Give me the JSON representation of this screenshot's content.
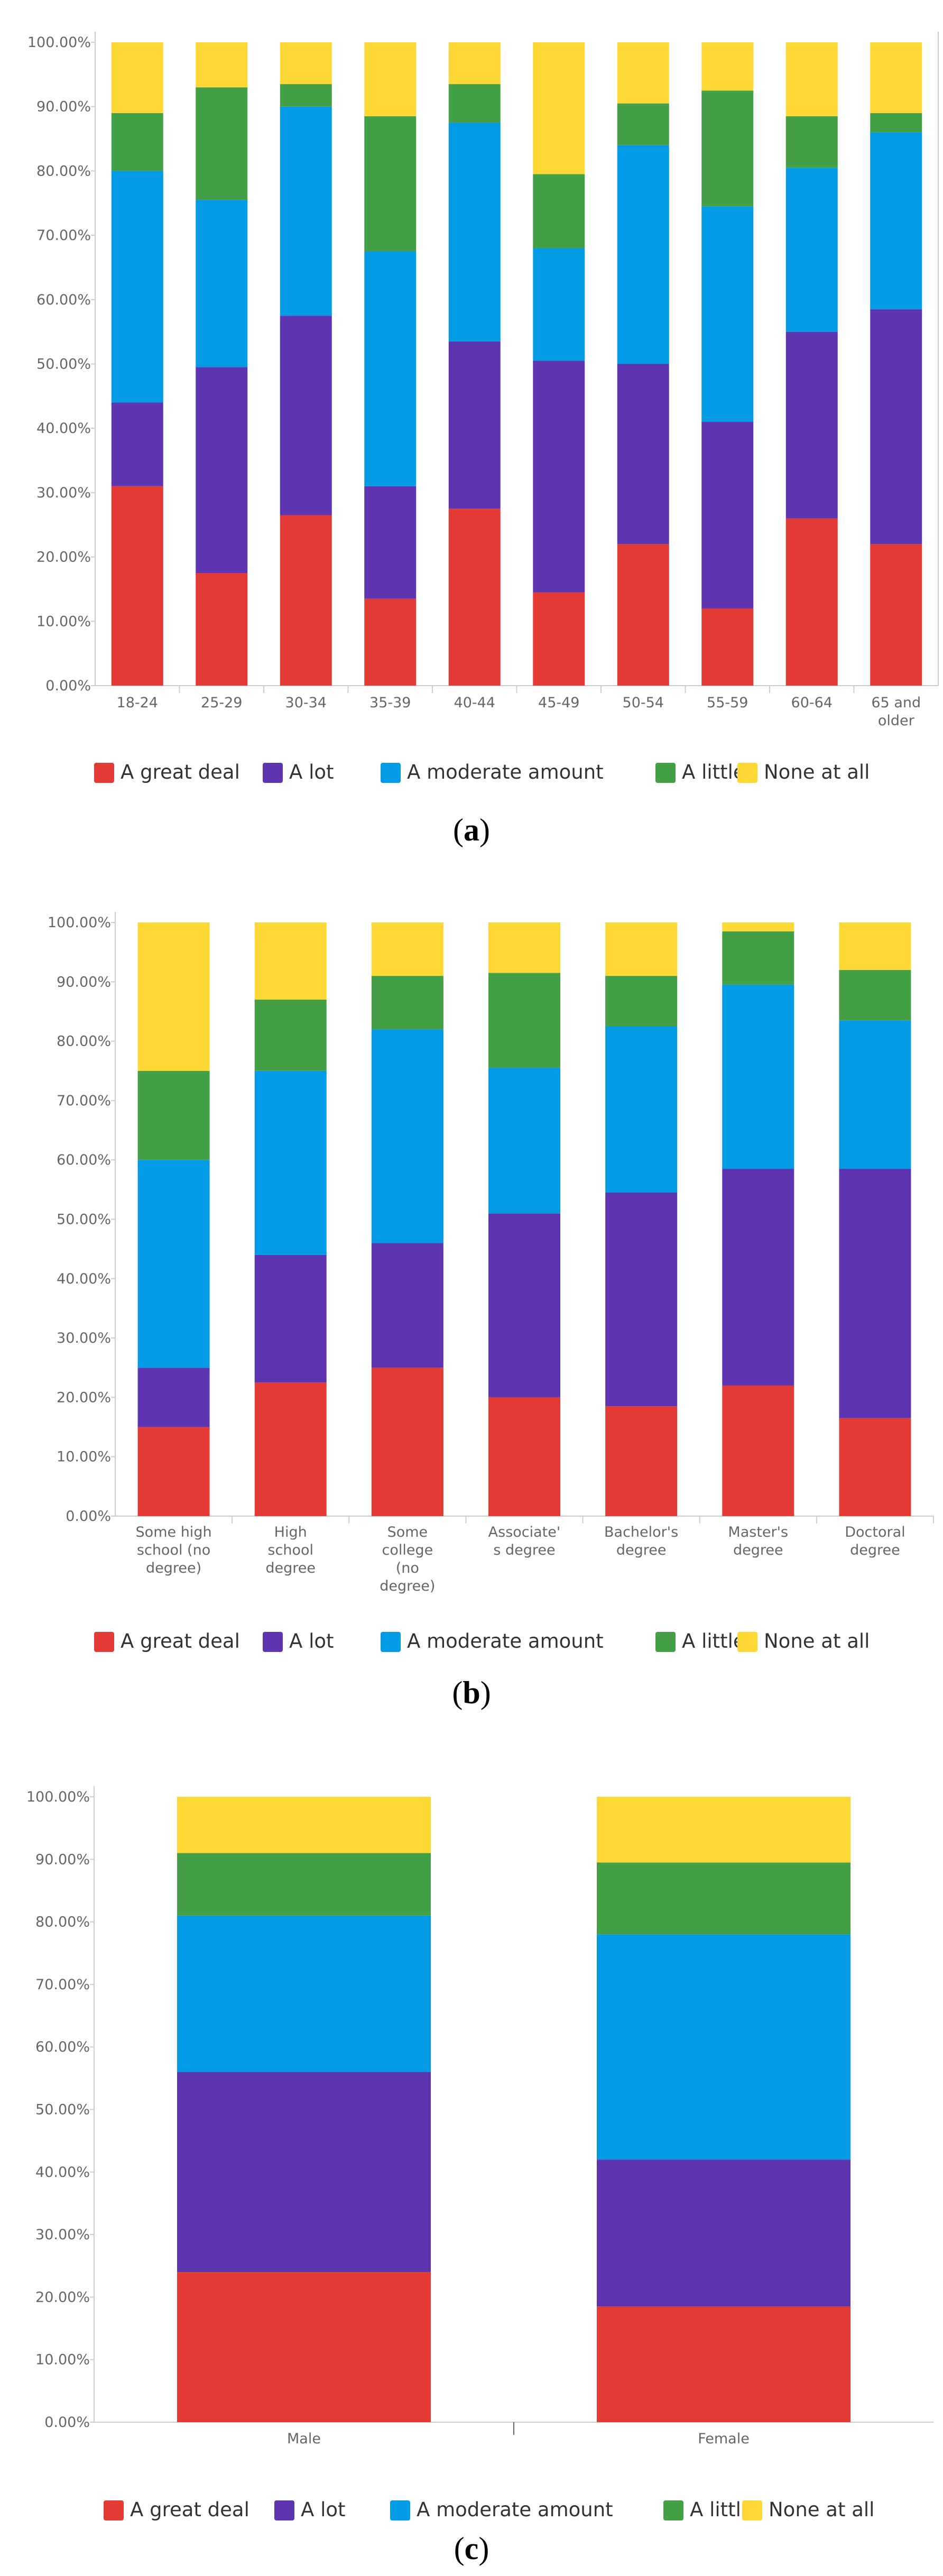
{
  "colors": {
    "A great deal": "#e43a35",
    "A lot": "#5e35b1",
    "A moderate amount": "#039be5",
    "A little": "#43a047",
    "None at all": "#fdd835"
  },
  "captions": [
    {
      "open": "(",
      "letter": "a",
      "close": ")"
    },
    {
      "open": "(",
      "letter": "b",
      "close": ")"
    },
    {
      "open": "(",
      "letter": "c",
      "close": ")"
    }
  ],
  "chart_data": [
    {
      "type": "bar",
      "stacked": true,
      "title": "",
      "caption": "(a)",
      "xlabel": "",
      "ylabel": "",
      "ylim": [
        0,
        100
      ],
      "yticks": [
        "0.00%",
        "10.00%",
        "20.00%",
        "30.00%",
        "40.00%",
        "50.00%",
        "60.00%",
        "70.00%",
        "80.00%",
        "90.00%",
        "100.00%"
      ],
      "categories": [
        [
          "18-24"
        ],
        [
          "25-29"
        ],
        [
          "30-34"
        ],
        [
          "35-39"
        ],
        [
          "40-44"
        ],
        [
          "45-49"
        ],
        [
          "50-54"
        ],
        [
          "55-59"
        ],
        [
          "60-64"
        ],
        [
          "65 and",
          "older"
        ]
      ],
      "series": [
        {
          "name": "A great deal",
          "values": [
            31,
            17.5,
            26.5,
            13.5,
            27.5,
            14.5,
            22,
            12,
            26,
            22
          ]
        },
        {
          "name": "A lot",
          "values": [
            13,
            32,
            31,
            17.5,
            26,
            36,
            28,
            29,
            29,
            36.5
          ]
        },
        {
          "name": "A moderate amount",
          "values": [
            36,
            26,
            32.5,
            36.5,
            34,
            17.5,
            34,
            33.5,
            25.5,
            27.5
          ]
        },
        {
          "name": "A little",
          "values": [
            9,
            17.5,
            3.5,
            21,
            6,
            11.5,
            6.5,
            18,
            8,
            3
          ]
        },
        {
          "name": "None at all",
          "values": [
            11,
            7,
            6.5,
            11.5,
            6.5,
            20.5,
            9.5,
            7.5,
            11.5,
            11
          ]
        }
      ],
      "legend": [
        "A great deal",
        "A lot",
        "A moderate amount",
        "A little",
        "None at all"
      ],
      "legend_position": "bottom"
    },
    {
      "type": "bar",
      "stacked": true,
      "title": "",
      "caption": "(b)",
      "xlabel": "",
      "ylabel": "",
      "ylim": [
        0,
        100
      ],
      "yticks": [
        "0.00%",
        "10.00%",
        "20.00%",
        "30.00%",
        "40.00%",
        "50.00%",
        "60.00%",
        "70.00%",
        "80.00%",
        "90.00%",
        "100.00%"
      ],
      "categories": [
        [
          "Some high",
          "school (no",
          "degree)"
        ],
        [
          "High",
          "school",
          "degree"
        ],
        [
          "Some",
          "college",
          "(no",
          "degree)"
        ],
        [
          "Associate'",
          "s degree"
        ],
        [
          "Bachelor's",
          "degree"
        ],
        [
          "Master's",
          "degree"
        ],
        [
          "Doctoral",
          "degree"
        ]
      ],
      "series": [
        {
          "name": "A great deal",
          "values": [
            15,
            22.5,
            25,
            20,
            18.5,
            22,
            16.5
          ]
        },
        {
          "name": "A lot",
          "values": [
            10,
            21.5,
            21,
            31,
            36,
            36.5,
            42
          ]
        },
        {
          "name": "A moderate amount",
          "values": [
            35,
            31,
            36,
            24.5,
            28,
            31,
            25
          ]
        },
        {
          "name": "A little",
          "values": [
            15,
            12,
            9,
            16,
            8.5,
            9,
            8.5
          ]
        },
        {
          "name": "None at all",
          "values": [
            25,
            13,
            9,
            8.5,
            9,
            1.5,
            8
          ]
        }
      ],
      "legend": [
        "A great deal",
        "A lot",
        "A moderate amount",
        "A little",
        "None at all"
      ],
      "legend_position": "bottom"
    },
    {
      "type": "bar",
      "stacked": true,
      "title": "",
      "caption": "(c)",
      "xlabel": "",
      "ylabel": "",
      "ylim": [
        0,
        100
      ],
      "yticks": [
        "0.00%",
        "10.00%",
        "20.00%",
        "30.00%",
        "40.00%",
        "50.00%",
        "60.00%",
        "70.00%",
        "80.00%",
        "90.00%",
        "100.00%"
      ],
      "categories": [
        [
          "Male"
        ],
        [
          "Female"
        ]
      ],
      "series": [
        {
          "name": "A great deal",
          "values": [
            24,
            18.5
          ]
        },
        {
          "name": "A lot",
          "values": [
            32,
            23.5
          ]
        },
        {
          "name": "A moderate amount",
          "values": [
            25,
            36
          ]
        },
        {
          "name": "A little",
          "values": [
            10,
            11.5
          ]
        },
        {
          "name": "None at all",
          "values": [
            9,
            10.5
          ]
        }
      ],
      "legend": [
        "A great deal",
        "A lot",
        "A moderate amount",
        "A little",
        "None at all"
      ],
      "legend_position": "bottom"
    }
  ]
}
